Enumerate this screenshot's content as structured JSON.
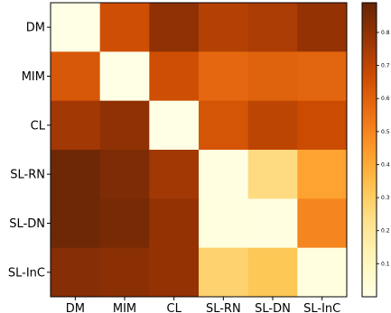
{
  "chart_data": {
    "type": "heatmap",
    "rows": [
      "DM",
      "MIM",
      "CL",
      "SL-RN",
      "SL-DN",
      "SL-InC"
    ],
    "cols": [
      "DM",
      "MIM",
      "CL",
      "SL-RN",
      "SL-DN",
      "SL-InC"
    ],
    "values": [
      [
        0.0,
        0.66,
        0.8,
        0.72,
        0.74,
        0.79
      ],
      [
        0.63,
        0.0,
        0.66,
        0.58,
        0.6,
        0.59
      ],
      [
        0.76,
        0.8,
        0.0,
        0.64,
        0.7,
        0.67
      ],
      [
        0.87,
        0.84,
        0.76,
        0.01,
        0.25,
        0.42
      ],
      [
        0.87,
        0.85,
        0.79,
        0.02,
        0.01,
        0.5
      ],
      [
        0.82,
        0.81,
        0.79,
        0.28,
        0.32,
        0.02
      ]
    ],
    "colorbar": {
      "min": 0.0,
      "max": 0.89,
      "ticks": [
        0.1,
        0.2,
        0.3,
        0.4,
        0.5,
        0.6,
        0.7,
        0.8
      ],
      "tick_labels": [
        "0.1",
        "0.2",
        "0.3",
        "0.4",
        "0.5",
        "0.6",
        "0.7",
        "0.8"
      ],
      "colormap": "YlOrBr"
    },
    "title": "",
    "xlabel": "",
    "ylabel": ""
  }
}
